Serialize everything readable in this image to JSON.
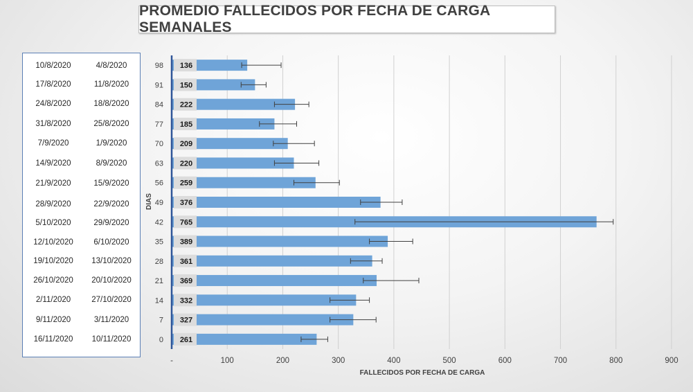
{
  "chart_data": {
    "type": "bar",
    "orientation": "horizontal",
    "title": "PROMEDIO FALLECIDOS POR FECHA DE CARGA SEMANALES",
    "xlabel": "FALLECIDOS POR FECHA DE CARGA",
    "ylabel": "DIAS",
    "xlim": [
      0,
      900
    ],
    "x_ticks": [
      "-",
      "100",
      "200",
      "300",
      "400",
      "500",
      "600",
      "700",
      "800",
      "900"
    ],
    "x_tick_values": [
      0,
      100,
      200,
      300,
      400,
      500,
      600,
      700,
      800,
      900
    ],
    "categories": [
      "98",
      "91",
      "84",
      "77",
      "70",
      "63",
      "56",
      "49",
      "42",
      "35",
      "28",
      "21",
      "14",
      "7",
      "0"
    ],
    "values": [
      136,
      150,
      222,
      185,
      209,
      220,
      259,
      376,
      765,
      389,
      361,
      369,
      332,
      327,
      261
    ],
    "error_low": [
      126,
      125,
      185,
      158,
      183,
      185,
      220,
      340,
      330,
      356,
      322,
      345,
      285,
      285,
      233
    ],
    "error_high": [
      197,
      170,
      247,
      225,
      257,
      265,
      302,
      415,
      795,
      434,
      379,
      445,
      356,
      368,
      281
    ],
    "gridlines": true,
    "bar_color": "#6fa4d8",
    "grid_color": "#d0d0d0"
  },
  "date_ranges": [
    {
      "end": "10/8/2020",
      "start": "4/8/2020"
    },
    {
      "end": "17/8/2020",
      "start": "11/8/2020"
    },
    {
      "end": "24/8/2020",
      "start": "18/8/2020"
    },
    {
      "end": "31/8/2020",
      "start": "25/8/2020"
    },
    {
      "end": "7/9/2020",
      "start": "1/9/2020"
    },
    {
      "end": "14/9/2020",
      "start": "8/9/2020"
    },
    {
      "end": "21/9/2020",
      "start": "15/9/2020"
    },
    {
      "end": "28/9/2020",
      "start": "22/9/2020"
    },
    {
      "end": "5/10/2020",
      "start": "29/9/2020"
    },
    {
      "end": "12/10/2020",
      "start": "6/10/2020"
    },
    {
      "end": "19/10/2020",
      "start": "13/10/2020"
    },
    {
      "end": "26/10/2020",
      "start": "20/10/2020"
    },
    {
      "end": "2/11/2020",
      "start": "27/10/2020"
    },
    {
      "end": "9/11/2020",
      "start": "3/11/2020"
    },
    {
      "end": "16/11/2020",
      "start": "10/11/2020"
    }
  ]
}
